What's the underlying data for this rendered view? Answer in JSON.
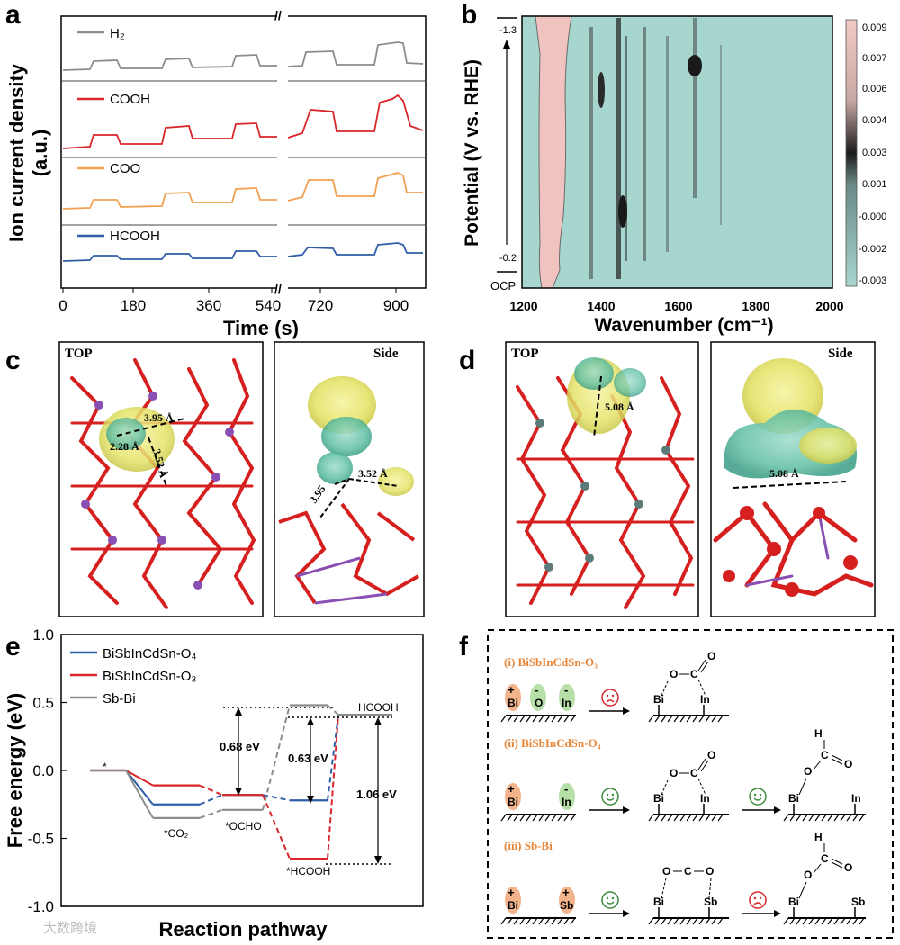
{
  "panel_letters": {
    "a": "a",
    "b": "b",
    "c": "c",
    "d": "d",
    "e": "e",
    "f": "f"
  },
  "panel_a": {
    "ylabel_line1": "Ion current density",
    "ylabel_line2": "(a.u.)",
    "xlabel": "Time (s)",
    "x_ticks": [
      "0",
      "180",
      "360",
      "540",
      "720",
      "900"
    ],
    "break_mark": "//",
    "traces": [
      {
        "name": "H₂",
        "color": "#8c8c8c"
      },
      {
        "name": "COOH",
        "color": "#d8262b"
      },
      {
        "name": "COO",
        "color": "#f0a050"
      },
      {
        "name": "HCOOH",
        "color": "#2f5da8"
      }
    ]
  },
  "panel_b": {
    "ylabel": "Potential (V vs. RHE)",
    "xlabel": "Wavenumber (cm⁻¹)",
    "x_ticks": [
      "1200",
      "1400",
      "1600",
      "1800",
      "2000"
    ],
    "y_top": "-1.3",
    "y_bottom": "-0.2",
    "ocp": "OCP",
    "colorbar_ticks": [
      "0.009",
      "0.007",
      "0.006",
      "0.004",
      "0.003",
      "0.001",
      "-0.000",
      "-0.002",
      "-0.003"
    ],
    "colors": {
      "bg": "#a7d6cf",
      "peak": "#f0c2c0",
      "dark": "#1a1a1a"
    }
  },
  "panel_c": {
    "top_label": "TOP",
    "side_label": "Side",
    "d1": "3.95 Å",
    "d2": "2.28 Å",
    "d3": "3.52 Å",
    "side_d1": "3.95",
    "side_d2": "3.52 Å"
  },
  "panel_d": {
    "top_label": "TOP",
    "side_label": "Side",
    "d1": "5.08 Å",
    "side_d1": "5.08 Å"
  },
  "panel_e": {
    "ylabel": "Free energy (eV)",
    "xlabel": "Reaction pathway",
    "y_ticks": [
      "1.0",
      "0.5",
      "0.0",
      "-0.5",
      "-1.0"
    ],
    "legend": [
      "BiSbInCdSn-O₄",
      "BiSbInCdSn-O₃",
      "Sb-Bi"
    ],
    "colors": {
      "O4": "#2f5da8",
      "O3": "#d8262b",
      "SbBi": "#8c8c8c"
    },
    "states": [
      "*",
      "*CO₂",
      "*OCHO",
      "*HCOOH",
      "HCOOH"
    ],
    "energy_labels": [
      "0.68 eV",
      "0.63 eV",
      "1.06 eV"
    ],
    "chart_data": {
      "type": "line",
      "categories": [
        "*",
        "*CO2",
        "*OCHO",
        "*HCOOH",
        "HCOOH"
      ],
      "series": [
        {
          "name": "BiSbInCdSn-O4",
          "values": [
            0.0,
            -0.25,
            -0.18,
            -0.22,
            0.41
          ]
        },
        {
          "name": "BiSbInCdSn-O3",
          "values": [
            0.0,
            -0.11,
            -0.18,
            -0.65,
            0.41
          ]
        },
        {
          "name": "Sb-Bi",
          "values": [
            0.0,
            -0.35,
            -0.29,
            0.48,
            0.41
          ]
        }
      ],
      "ylim": [
        -1.0,
        1.0
      ]
    }
  },
  "panel_f": {
    "section1": "(i) BiSbInCdSn-O₃",
    "section2": "(ii) BiSbInCdSn-O₄",
    "section3": "(iii) Sb-Bi",
    "atoms": {
      "bi": "Bi",
      "o": "O",
      "in": "In",
      "sb": "Sb",
      "c": "C",
      "h": "H"
    },
    "plus": "+",
    "minus": "-"
  },
  "watermark": "大数跨境"
}
